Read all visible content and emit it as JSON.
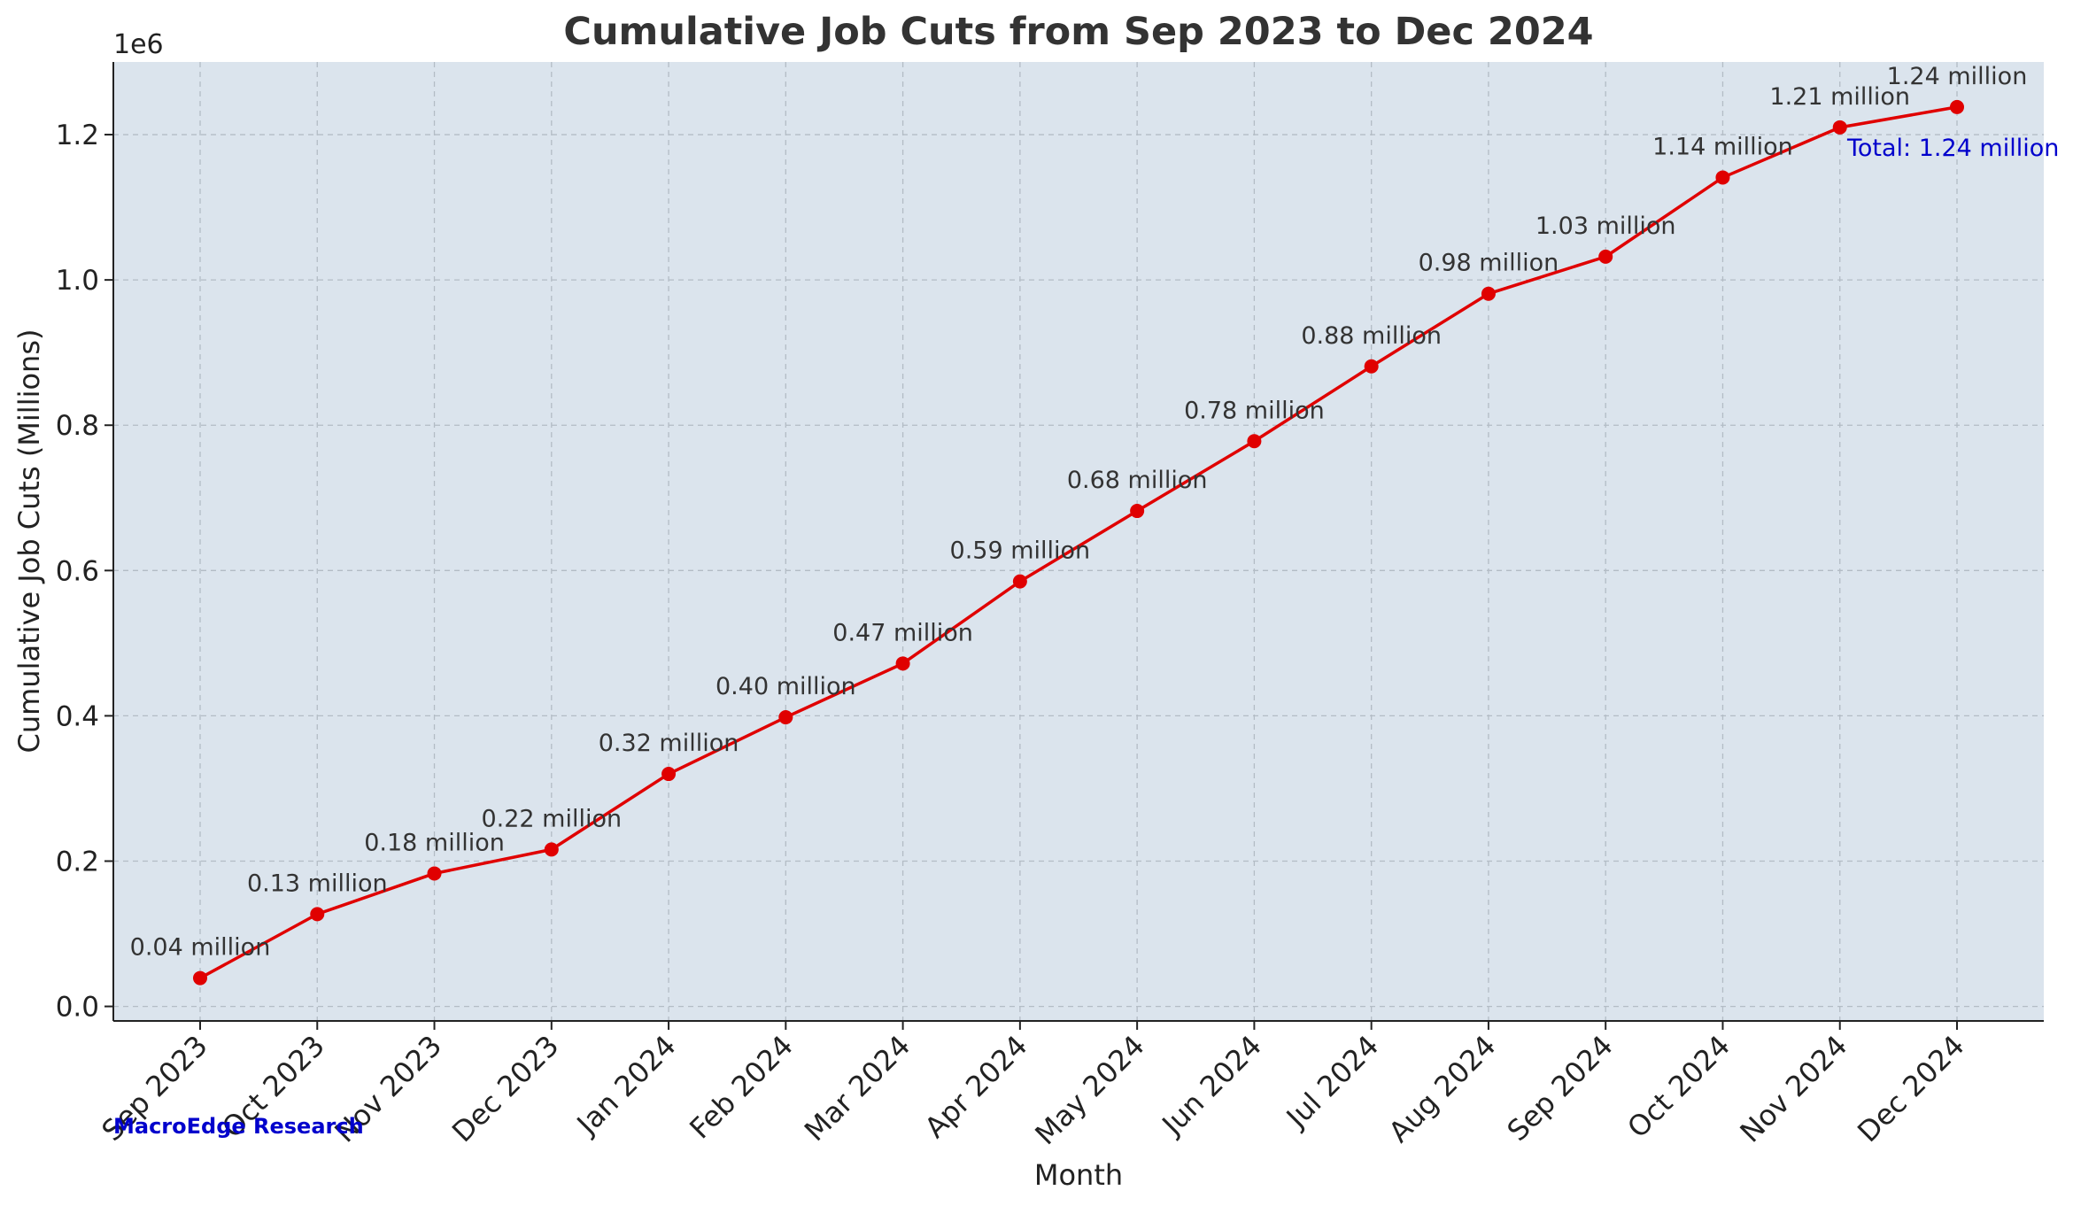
{
  "chart_data": {
    "type": "line",
    "title": "Cumulative Job Cuts from Sep 2023 to Dec 2024",
    "xlabel": "Month",
    "ylabel": "Cumulative Job Cuts (Millions)",
    "y_offset_label": "1e6",
    "ylim": [
      -0.02,
      1.3
    ],
    "yticks": [
      0.0,
      0.2,
      0.4,
      0.6,
      0.8,
      1.0,
      1.2
    ],
    "ytick_labels": [
      "0.0",
      "0.2",
      "0.4",
      "0.6",
      "0.8",
      "1.0",
      "1.2"
    ],
    "grid": true,
    "categories": [
      "Sep 2023",
      "Oct 2023",
      "Nov 2023",
      "Dec 2023",
      "Jan 2024",
      "Feb 2024",
      "Mar 2024",
      "Apr 2024",
      "May 2024",
      "Jun 2024",
      "Jul 2024",
      "Aug 2024",
      "Sep 2024",
      "Oct 2024",
      "Nov 2024",
      "Dec 2024"
    ],
    "series": [
      {
        "values": [
          0.039,
          0.127,
          0.183,
          0.216,
          0.32,
          0.398,
          0.472,
          0.585,
          0.682,
          0.778,
          0.881,
          0.981,
          1.032,
          1.141,
          1.21,
          1.238
        ],
        "labels": [
          "0.04 million",
          "0.13 million",
          "0.18 million",
          "0.22 million",
          "0.32 million",
          "0.40 million",
          "0.47 million",
          "0.59 million",
          "0.68 million",
          "0.78 million",
          "0.88 million",
          "0.98 million",
          "1.03 million",
          "1.14 million",
          "1.21 million",
          "1.24 million"
        ],
        "color": "#e00000"
      }
    ],
    "annotation": "Total: 1.24 million",
    "annotation_color": "#0000cc",
    "source_text": "MacroEdge Research",
    "source_color": "#0000cc",
    "plot_background": "#dbe4ed"
  }
}
